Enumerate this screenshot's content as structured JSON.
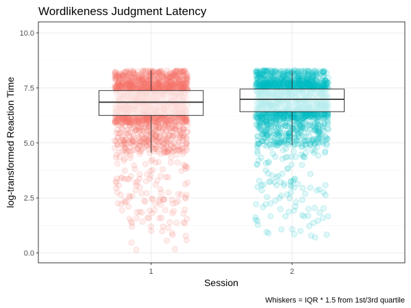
{
  "chart_data": {
    "type": "box-jitter",
    "title": "Wordlikeness Judgment Latency",
    "xlabel": "Session",
    "ylabel": "log-transformed Reaction Time",
    "caption": "Whiskers = IQR * 1.5 from 1st/3rd quartile",
    "categories": [
      "1",
      "2"
    ],
    "ylim": [
      -0.45,
      10.5
    ],
    "yticks": [
      0.0,
      2.5,
      5.0,
      7.5,
      10.0
    ],
    "ytick_labels": [
      "0.0",
      "2.5",
      "5.0",
      "7.5",
      "10.0"
    ],
    "grid": true,
    "legend": "none",
    "series": [
      {
        "category": "1",
        "color": "#F8766D",
        "box": {
          "whisker_low": 4.55,
          "q1": 6.25,
          "median": 6.85,
          "q3": 7.38,
          "whisker_high": 8.3
        },
        "points_range": [
          0.0,
          8.3
        ]
      },
      {
        "category": "2",
        "color": "#00BFC4",
        "box": {
          "whisker_low": 4.9,
          "q1": 6.42,
          "median": 6.98,
          "q3": 7.45,
          "whisker_high": 8.28
        },
        "points_range": [
          0.0,
          8.3
        ]
      }
    ]
  }
}
